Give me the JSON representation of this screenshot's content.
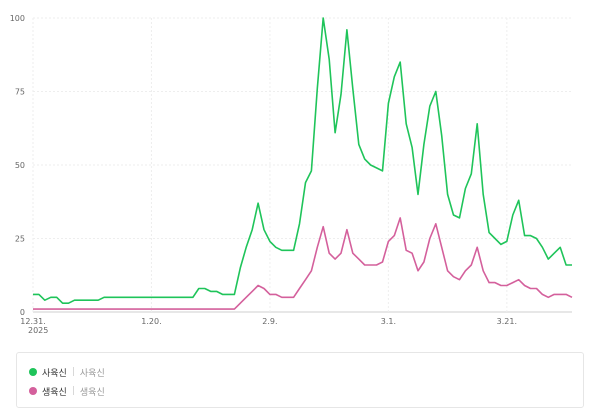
{
  "chart_data": {
    "type": "line",
    "y_ticks": [
      "0",
      "25",
      "50",
      "75",
      "100"
    ],
    "ylim": [
      0,
      100
    ],
    "x_ticks": [
      {
        "label": "12.31.",
        "index": 0
      },
      {
        "label": "1.20.",
        "index": 20
      },
      {
        "label": "2.9.",
        "index": 40
      },
      {
        "label": "3.1.",
        "index": 60
      },
      {
        "label": "3.21.",
        "index": 80
      }
    ],
    "year_label": "2025",
    "grid": true,
    "series": [
      {
        "name": "사육신",
        "color": "#1fc45a",
        "values": [
          6,
          6,
          4,
          5,
          5,
          3,
          3,
          4,
          4,
          4,
          4,
          4,
          5,
          5,
          5,
          5,
          5,
          5,
          5,
          5,
          5,
          5,
          5,
          5,
          5,
          5,
          5,
          5,
          8,
          8,
          7,
          7,
          6,
          6,
          6,
          15,
          22,
          28,
          37,
          28,
          24,
          22,
          21,
          21,
          21,
          30,
          44,
          48,
          76,
          100,
          86,
          61,
          74,
          96,
          76,
          57,
          52,
          50,
          49,
          48,
          71,
          80,
          85,
          64,
          56,
          40,
          57,
          70,
          75,
          60,
          40,
          33,
          32,
          42,
          47,
          64,
          40,
          27,
          25,
          23,
          24,
          33,
          38,
          26,
          26,
          25,
          22,
          18,
          20,
          22,
          16,
          16
        ]
      },
      {
        "name": "생육신",
        "color": "#d4609c",
        "values": [
          1,
          1,
          1,
          1,
          1,
          1,
          1,
          1,
          1,
          1,
          1,
          1,
          1,
          1,
          1,
          1,
          1,
          1,
          1,
          1,
          1,
          1,
          1,
          1,
          1,
          1,
          1,
          1,
          1,
          1,
          1,
          1,
          1,
          1,
          1,
          3,
          5,
          7,
          9,
          8,
          6,
          6,
          5,
          5,
          5,
          8,
          11,
          14,
          22,
          29,
          20,
          18,
          20,
          28,
          20,
          18,
          16,
          16,
          16,
          17,
          24,
          26,
          32,
          21,
          20,
          14,
          17,
          25,
          30,
          22,
          14,
          12,
          11,
          14,
          16,
          22,
          14,
          10,
          10,
          9,
          9,
          10,
          11,
          9,
          8,
          8,
          6,
          5,
          6,
          6,
          6,
          5
        ]
      }
    ]
  },
  "legend": [
    {
      "name": "사육신",
      "sub": "사육신"
    },
    {
      "name": "생육신",
      "sub": "생육신"
    }
  ]
}
